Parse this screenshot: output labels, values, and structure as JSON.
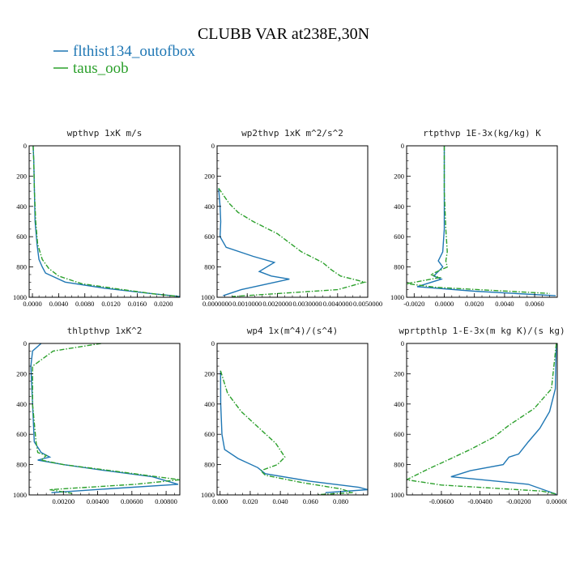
{
  "figure": {
    "title": "CLUBB VAR at238E,30N",
    "legend": [
      {
        "name": "flthist134_outofbox",
        "color": "#1f77b4",
        "dash": "solid"
      },
      {
        "name": "taus_oob",
        "color": "#2ca02c",
        "dash": "dashdot"
      }
    ]
  },
  "chart_data": [
    {
      "type": "line",
      "title": "wpthvp  1xK m/s",
      "xlim": [
        -0.0005,
        0.0225
      ],
      "xticks": [
        "0.0000",
        "0.0040",
        "0.0080",
        "0.0120",
        "0.0160",
        "0.0200"
      ],
      "xtick_values": [
        0,
        0.004,
        0.008,
        0.012,
        0.016,
        0.02
      ],
      "ylim": [
        0,
        1000
      ],
      "yticks": [
        "0",
        "200",
        "400",
        "600",
        "800",
        "1000"
      ],
      "series": [
        {
          "name": "flthist134_outofbox",
          "points": [
            [
              0.0001,
              0
            ],
            [
              0.0002,
              100
            ],
            [
              0.0003,
              300
            ],
            [
              0.0004,
              500
            ],
            [
              0.0007,
              650
            ],
            [
              0.001,
              750
            ],
            [
              0.0015,
              800
            ],
            [
              0.002,
              840
            ],
            [
              0.005,
              900
            ],
            [
              0.011,
              940
            ],
            [
              0.018,
              975
            ],
            [
              0.0225,
              995
            ]
          ]
        },
        {
          "name": "taus_oob",
          "points": [
            [
              0.0001,
              0
            ],
            [
              0.0002,
              100
            ],
            [
              0.0003,
              300
            ],
            [
              0.0005,
              500
            ],
            [
              0.0008,
              650
            ],
            [
              0.0015,
              750
            ],
            [
              0.0025,
              810
            ],
            [
              0.004,
              860
            ],
            [
              0.0075,
              910
            ],
            [
              0.013,
              945
            ],
            [
              0.019,
              980
            ],
            [
              0.0225,
              995
            ]
          ]
        }
      ]
    },
    {
      "type": "line",
      "title": "wp2thvp  1xK m^2/s^2",
      "xlim": [
        0,
        0.005
      ],
      "xticks": [
        "0.0000000",
        "0.0010000",
        "0.0020000",
        "0.0030000",
        "0.0040000",
        "0.0050000"
      ],
      "xtick_values": [
        0,
        0.001,
        0.002,
        0.003,
        0.004,
        0.005
      ],
      "ylim": [
        0,
        1000
      ],
      "yticks": [
        "0",
        "200",
        "400",
        "600",
        "800",
        "1000"
      ],
      "series": [
        {
          "name": "flthist134_outofbox",
          "points": [
            [
              5e-05,
              280
            ],
            [
              0.0001,
              400
            ],
            [
              0.00012,
              500
            ],
            [
              0.0001,
              600
            ],
            [
              0.0003,
              670
            ],
            [
              0.0012,
              730
            ],
            [
              0.0019,
              770
            ],
            [
              0.0014,
              830
            ],
            [
              0.0018,
              860
            ],
            [
              0.0024,
              880
            ],
            [
              0.0008,
              950
            ],
            [
              0.0002,
              990
            ]
          ]
        },
        {
          "name": "taus_oob",
          "points": [
            [
              5e-05,
              280
            ],
            [
              0.0004,
              380
            ],
            [
              0.0007,
              440
            ],
            [
              0.0012,
              500
            ],
            [
              0.002,
              580
            ],
            [
              0.0028,
              700
            ],
            [
              0.0035,
              770
            ],
            [
              0.0038,
              820
            ],
            [
              0.0041,
              860
            ],
            [
              0.0049,
              900
            ],
            [
              0.004,
              950
            ],
            [
              0.0005,
              995
            ]
          ]
        }
      ]
    },
    {
      "type": "line",
      "title": "rtpthvp  1E-3x(kg/kg) K",
      "xlim": [
        -0.0025,
        0.0075
      ],
      "xticks": [
        "-0.0020",
        "0.0000",
        "0.0020",
        "0.0040",
        "0.0060"
      ],
      "xtick_values": [
        -0.002,
        0,
        0.002,
        0.004,
        0.006
      ],
      "ylim": [
        0,
        1000
      ],
      "yticks": [
        "0",
        "200",
        "400",
        "600",
        "800",
        "1000"
      ],
      "series": [
        {
          "name": "flthist134_outofbox",
          "points": [
            [
              0,
              0
            ],
            [
              0,
              300
            ],
            [
              0,
              550
            ],
            [
              -0.0001,
              700
            ],
            [
              -0.0004,
              760
            ],
            [
              -0.0001,
              800
            ],
            [
              -0.0007,
              860
            ],
            [
              -0.0002,
              880
            ],
            [
              -0.0018,
              930
            ],
            [
              0.002,
              960
            ],
            [
              0.0074,
              990
            ]
          ]
        },
        {
          "name": "taus_oob",
          "points": [
            [
              0,
              0
            ],
            [
              0,
              300
            ],
            [
              0.0001,
              550
            ],
            [
              0.0002,
              700
            ],
            [
              0.0001,
              760
            ],
            [
              0.0002,
              800
            ],
            [
              -0.0009,
              850
            ],
            [
              -0.0003,
              870
            ],
            [
              -0.0025,
              910
            ],
            [
              -0.0005,
              935
            ],
            [
              0.007,
              975
            ]
          ]
        }
      ]
    },
    {
      "type": "line",
      "title": "thlpthvp  1xK^2",
      "xlim": [
        0,
        0.0088
      ],
      "xticks": [
        "0.00200",
        "0.00400",
        "0.00600",
        "0.00800"
      ],
      "xtick_values": [
        0.002,
        0.004,
        0.006,
        0.008
      ],
      "ylim": [
        0,
        1000
      ],
      "yticks": [
        "0",
        "200",
        "400",
        "600",
        "800",
        "1000"
      ],
      "series": [
        {
          "name": "flthist134_outofbox",
          "points": [
            [
              0.0007,
              0
            ],
            [
              0.0002,
              50
            ],
            [
              0.0001,
              150
            ],
            [
              0.0002,
              400
            ],
            [
              0.0003,
              650
            ],
            [
              0.0007,
              720
            ],
            [
              0.0012,
              750
            ],
            [
              0.0005,
              770
            ],
            [
              0.002,
              800
            ],
            [
              0.0045,
              840
            ],
            [
              0.0072,
              880
            ],
            [
              0.0087,
              930
            ],
            [
              0.0046,
              960
            ],
            [
              0.0013,
              985
            ]
          ]
        },
        {
          "name": "taus_oob",
          "points": [
            [
              0.0042,
              0
            ],
            [
              0.0014,
              50
            ],
            [
              0.0002,
              150
            ],
            [
              0.0002,
              400
            ],
            [
              0.0004,
              650
            ],
            [
              0.0005,
              720
            ],
            [
              0.001,
              740
            ],
            [
              0.0007,
              770
            ],
            [
              0.002,
              800
            ],
            [
              0.0048,
              840
            ],
            [
              0.0088,
              900
            ],
            [
              0.0062,
              930
            ],
            [
              0.0012,
              965
            ],
            [
              0.0025,
              990
            ]
          ]
        }
      ]
    },
    {
      "type": "line",
      "title": "wp4  1x(m^4)/(s^4)",
      "xlim": [
        -0.002,
        0.098
      ],
      "xticks": [
        "0.000",
        "0.020",
        "0.040",
        "0.060",
        "0.080"
      ],
      "xtick_values": [
        0,
        0.02,
        0.04,
        0.06,
        0.08
      ],
      "ylim": [
        0,
        1000
      ],
      "yticks": [
        "0",
        "200",
        "400",
        "600",
        "800",
        "1000"
      ],
      "series": [
        {
          "name": "flthist134_outofbox",
          "points": [
            [
              0.0003,
              180
            ],
            [
              0.0004,
              400
            ],
            [
              0.0012,
              600
            ],
            [
              0.003,
              700
            ],
            [
              0.012,
              760
            ],
            [
              0.025,
              820
            ],
            [
              0.03,
              860
            ],
            [
              0.06,
              910
            ],
            [
              0.092,
              950
            ],
            [
              0.098,
              965
            ],
            [
              0.07,
              985
            ]
          ]
        },
        {
          "name": "taus_oob",
          "points": [
            [
              0.0003,
              180
            ],
            [
              0.005,
              330
            ],
            [
              0.014,
              450
            ],
            [
              0.026,
              560
            ],
            [
              0.037,
              660
            ],
            [
              0.043,
              750
            ],
            [
              0.038,
              800
            ],
            [
              0.027,
              840
            ],
            [
              0.03,
              870
            ],
            [
              0.055,
              920
            ],
            [
              0.08,
              960
            ],
            [
              0.088,
              985
            ],
            [
              0.065,
              998
            ]
          ]
        }
      ]
    },
    {
      "type": "line",
      "title": "wprtpthlp  1-E-3x(m kg K)/(s kg)",
      "xlim": [
        -0.0078,
        0
      ],
      "xticks": [
        "-0.00600",
        "-0.00400",
        "-0.00200",
        "0.00000"
      ],
      "xtick_values": [
        -0.006,
        -0.004,
        -0.002,
        0
      ],
      "ylim": [
        0,
        1000
      ],
      "yticks": [
        "0",
        "200",
        "400",
        "600",
        "800",
        "1000"
      ],
      "series": [
        {
          "name": "flthist134_outofbox",
          "points": [
            [
              -5e-05,
              0
            ],
            [
              -0.0001,
              300
            ],
            [
              -0.0004,
              450
            ],
            [
              -0.0009,
              560
            ],
            [
              -0.0015,
              650
            ],
            [
              -0.002,
              730
            ],
            [
              -0.0025,
              750
            ],
            [
              -0.0028,
              800
            ],
            [
              -0.0045,
              840
            ],
            [
              -0.0055,
              880
            ],
            [
              -0.0015,
              930
            ],
            [
              -5e-05,
              995
            ]
          ]
        },
        {
          "name": "taus_oob",
          "points": [
            [
              -5e-05,
              0
            ],
            [
              -0.0003,
              300
            ],
            [
              -0.0012,
              430
            ],
            [
              -0.0025,
              540
            ],
            [
              -0.0033,
              620
            ],
            [
              -0.0045,
              700
            ],
            [
              -0.0055,
              760
            ],
            [
              -0.0067,
              830
            ],
            [
              -0.0078,
              900
            ],
            [
              -0.006,
              935
            ],
            [
              -0.0008,
              975
            ],
            [
              -2e-05,
              995
            ]
          ]
        }
      ]
    }
  ]
}
